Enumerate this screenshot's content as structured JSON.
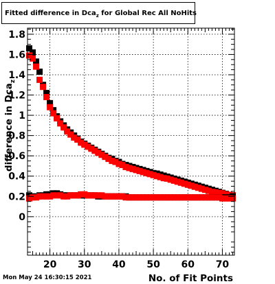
{
  "chart_data": {
    "type": "scatter",
    "title_main": "Fitted difference in Dca",
    "title_sub": "z",
    "title_rest": " for Global Rec All NoHits",
    "xlabel": "No. of Fit Points",
    "ylabel": "difference in Dca",
    "ylabel_sub": "z",
    "xlim": [
      13.5,
      73.5
    ],
    "ylim": [
      -0.38,
      1.86
    ],
    "x_ticks": [
      20,
      30,
      40,
      50,
      60,
      70
    ],
    "y_ticks": [
      0,
      0.2,
      0.4,
      0.6,
      0.8,
      1,
      1.2,
      1.4,
      1.6,
      1.8
    ],
    "y_tick_labels": [
      "0",
      "0.2",
      "0.4",
      "0.6",
      "0.8",
      "1",
      "1.2",
      "1.4",
      "1.6",
      "1.8"
    ],
    "grid": true,
    "series": [
      {
        "color": "#000000",
        "x": [
          14,
          15,
          16,
          17,
          18,
          19,
          20,
          21,
          22,
          23,
          24,
          25,
          26,
          27,
          28,
          29,
          30,
          31,
          32,
          33,
          34,
          35,
          36,
          37,
          38,
          39,
          40,
          41,
          42,
          43,
          44,
          45,
          46,
          47,
          48,
          49,
          50,
          51,
          52,
          53,
          54,
          55,
          56,
          57,
          58,
          59,
          60,
          61,
          62,
          63,
          64,
          65,
          66,
          67,
          68,
          69,
          70,
          71,
          72,
          73
        ],
        "y": [
          1.66,
          1.62,
          1.53,
          1.43,
          1.3,
          1.22,
          1.12,
          1.05,
          0.99,
          0.94,
          0.9,
          0.86,
          0.83,
          0.8,
          0.77,
          0.74,
          0.72,
          0.7,
          0.68,
          0.66,
          0.64,
          0.62,
          0.6,
          0.58,
          0.57,
          0.55,
          0.54,
          0.52,
          0.51,
          0.5,
          0.49,
          0.48,
          0.47,
          0.46,
          0.45,
          0.44,
          0.43,
          0.425,
          0.415,
          0.405,
          0.395,
          0.385,
          0.375,
          0.365,
          0.355,
          0.345,
          0.335,
          0.325,
          0.315,
          0.305,
          0.295,
          0.285,
          0.275,
          0.265,
          0.255,
          0.245,
          0.235,
          0.225,
          0.215,
          0.21
        ]
      },
      {
        "color": "#ff0000",
        "x": [
          14,
          15,
          16,
          17,
          18,
          19,
          20,
          21,
          22,
          23,
          24,
          25,
          26,
          27,
          28,
          29,
          30,
          31,
          32,
          33,
          34,
          35,
          36,
          37,
          38,
          39,
          40,
          41,
          42,
          43,
          44,
          45,
          46,
          47,
          48,
          49,
          50,
          51,
          52,
          53,
          54,
          55,
          56,
          57,
          58,
          59,
          60,
          61,
          62,
          63,
          64,
          65,
          66,
          67,
          68,
          69,
          70,
          71,
          72,
          73
        ],
        "y": [
          1.59,
          1.56,
          1.48,
          1.35,
          1.28,
          1.18,
          1.08,
          1.02,
          0.97,
          0.92,
          0.88,
          0.84,
          0.81,
          0.78,
          0.76,
          0.73,
          0.71,
          0.69,
          0.67,
          0.65,
          0.63,
          0.61,
          0.59,
          0.57,
          0.55,
          0.54,
          0.52,
          0.51,
          0.49,
          0.48,
          0.47,
          0.46,
          0.45,
          0.44,
          0.43,
          0.42,
          0.41,
          0.4,
          0.39,
          0.38,
          0.375,
          0.365,
          0.355,
          0.345,
          0.335,
          0.325,
          0.315,
          0.305,
          0.295,
          0.285,
          0.275,
          0.265,
          0.255,
          0.245,
          0.24,
          0.235,
          0.23,
          0.22,
          0.215,
          0.21
        ]
      },
      {
        "color": "#000000",
        "x": [
          14,
          15,
          16,
          17,
          18,
          19,
          20,
          21,
          22,
          23,
          24,
          25,
          26,
          27,
          28,
          29,
          30,
          31,
          32,
          33,
          34,
          35,
          36,
          37,
          38,
          39,
          40,
          41,
          42,
          43,
          44,
          45,
          46,
          47,
          48,
          49,
          50,
          51,
          52,
          53,
          54,
          55,
          56,
          57,
          58,
          59,
          60,
          61,
          62,
          63,
          64,
          65,
          66,
          67,
          68,
          69,
          70,
          71,
          72,
          73
        ],
        "y": [
          0.21,
          0.2,
          0.2,
          0.21,
          0.21,
          0.22,
          0.22,
          0.23,
          0.23,
          0.22,
          0.21,
          0.21,
          0.21,
          0.21,
          0.21,
          0.21,
          0.21,
          0.21,
          0.21,
          0.21,
          0.2,
          0.2,
          0.2,
          0.2,
          0.2,
          0.2,
          0.2,
          0.2,
          0.2,
          0.19,
          0.19,
          0.19,
          0.19,
          0.19,
          0.19,
          0.19,
          0.19,
          0.19,
          0.19,
          0.19,
          0.19,
          0.19,
          0.19,
          0.19,
          0.19,
          0.19,
          0.19,
          0.19,
          0.19,
          0.19,
          0.19,
          0.19,
          0.19,
          0.19,
          0.19,
          0.19,
          0.19,
          0.19,
          0.19,
          0.2
        ]
      },
      {
        "color": "#ff0000",
        "x": [
          14,
          15,
          16,
          17,
          18,
          19,
          20,
          21,
          22,
          23,
          24,
          25,
          26,
          27,
          28,
          29,
          30,
          31,
          32,
          33,
          34,
          35,
          36,
          37,
          38,
          39,
          40,
          41,
          42,
          43,
          44,
          45,
          46,
          47,
          48,
          49,
          50,
          51,
          52,
          53,
          54,
          55,
          56,
          57,
          58,
          59,
          60,
          61,
          62,
          63,
          64,
          65,
          66,
          67,
          68,
          69,
          70,
          71,
          72,
          73
        ],
        "y": [
          0.18,
          0.19,
          0.19,
          0.2,
          0.2,
          0.2,
          0.2,
          0.21,
          0.21,
          0.21,
          0.2,
          0.2,
          0.21,
          0.21,
          0.21,
          0.22,
          0.22,
          0.21,
          0.21,
          0.21,
          0.21,
          0.21,
          0.2,
          0.2,
          0.2,
          0.2,
          0.2,
          0.2,
          0.19,
          0.19,
          0.19,
          0.19,
          0.19,
          0.19,
          0.19,
          0.19,
          0.19,
          0.19,
          0.19,
          0.19,
          0.19,
          0.19,
          0.19,
          0.19,
          0.19,
          0.19,
          0.19,
          0.19,
          0.19,
          0.19,
          0.19,
          0.19,
          0.19,
          0.19,
          0.19,
          0.19,
          0.18,
          0.18,
          0.18,
          0.18
        ]
      }
    ]
  },
  "footer": {
    "timestamp": "Mon May 24 16:30:15 2021"
  }
}
